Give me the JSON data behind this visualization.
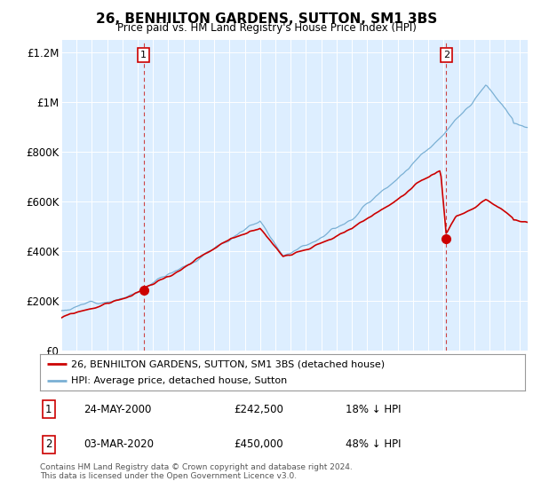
{
  "title": "26, BENHILTON GARDENS, SUTTON, SM1 3BS",
  "subtitle": "Price paid vs. HM Land Registry's House Price Index (HPI)",
  "red_label": "26, BENHILTON GARDENS, SUTTON, SM1 3BS (detached house)",
  "blue_label": "HPI: Average price, detached house, Sutton",
  "footer1": "Contains HM Land Registry data © Crown copyright and database right 2024.",
  "footer2": "This data is licensed under the Open Government Licence v3.0.",
  "annotation1": {
    "num": "1",
    "date": "24-MAY-2000",
    "price": "£242,500",
    "pct": "18% ↓ HPI"
  },
  "annotation2": {
    "num": "2",
    "date": "03-MAR-2020",
    "price": "£450,000",
    "pct": "48% ↓ HPI"
  },
  "red_color": "#cc0000",
  "blue_color": "#7ab0d4",
  "bg_color": "#ddeeff",
  "ylim": [
    0,
    1250000
  ],
  "yticks": [
    0,
    200000,
    400000,
    600000,
    800000,
    1000000,
    1200000
  ],
  "ytick_labels": [
    "£0",
    "£200K",
    "£400K",
    "£600K",
    "£800K",
    "£1M",
    "£1.2M"
  ],
  "sale1_x": 2000.38,
  "sale1_y": 242500,
  "sale2_x": 2020.17,
  "sale2_y": 450000,
  "xmin": 1995.0,
  "xmax": 2025.5
}
